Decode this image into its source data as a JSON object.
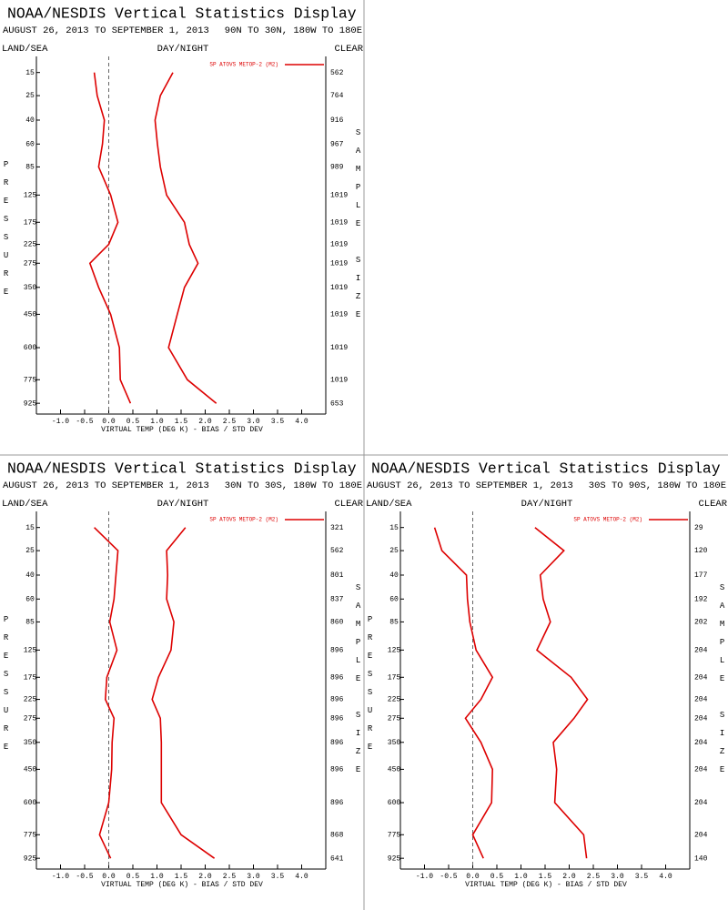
{
  "chart_data": [
    {
      "type": "line",
      "title": "NOAA/NESDIS Vertical Statistics Display",
      "subtitle": "AUGUST 26, 2013 TO SEPTEMBER 1, 2013",
      "region": "90N TO 30N, 180W TO 180E",
      "left_label": "LAND/SEA",
      "center_label": "DAY/NIGHT",
      "right_label": "CLEAR",
      "y_label": "PRESSURE",
      "y2_label": "SAMPLE SIZE",
      "x_label": "VIRTUAL TEMP (DEG K) - BIAS / STD DEV",
      "xlim": [
        -1.5,
        4.5
      ],
      "xticks": [
        {
          "value": -1.0,
          "label": "-1.0"
        },
        -0.5,
        {
          "value": 0.0,
          "label": "0.0"
        },
        0.5,
        {
          "value": 1.0,
          "label": "1.0"
        },
        1.5,
        {
          "value": 2.0,
          "label": "2.0"
        },
        2.5,
        {
          "value": 3.0,
          "label": "3.0"
        },
        3.5,
        {
          "value": 4.0,
          "label": "4.0"
        }
      ],
      "ylim": [
        10,
        1000
      ],
      "yticks": [
        15,
        25,
        40,
        60,
        85,
        125,
        175,
        225,
        275,
        350,
        450,
        600,
        775,
        925
      ],
      "y": [
        15,
        25,
        40,
        60,
        85,
        125,
        175,
        225,
        275,
        350,
        450,
        600,
        775,
        925
      ],
      "legend": "upper right",
      "series": [
        {
          "name": "SP ATOVS METOP-2 (M2)",
          "color": "#dd0000",
          "values": [
            -0.3,
            -0.24,
            -0.09,
            -0.13,
            -0.21,
            0.04,
            0.19,
            0.0,
            -0.39,
            -0.21,
            0.04,
            0.22,
            0.24,
            0.45
          ],
          "std_dev": [
            1.33,
            1.07,
            0.96,
            1.01,
            1.07,
            1.2,
            1.57,
            1.67,
            1.85,
            1.57,
            1.42,
            1.24,
            1.63,
            2.23
          ]
        }
      ],
      "sample_size": [
        562,
        764,
        916,
        967,
        989,
        1019,
        1019,
        1019,
        1019,
        1019,
        1019,
        1019,
        1019,
        653
      ]
    },
    {
      "type": "line",
      "title": "NOAA/NESDIS Vertical Statistics Display",
      "subtitle": "AUGUST 26, 2013 TO SEPTEMBER 1, 2013",
      "region": "30N TO 30S, 180W TO 180E",
      "left_label": "LAND/SEA",
      "center_label": "DAY/NIGHT",
      "right_label": "CLEAR",
      "y_label": "PRESSURE",
      "y2_label": "SAMPLE SIZE",
      "x_label": "VIRTUAL TEMP (DEG K) - BIAS / STD DEV",
      "xlim": [
        -1.5,
        4.5
      ],
      "xticks": [
        {
          "value": -1.0,
          "label": "-1.0"
        },
        -0.5,
        {
          "value": 0.0,
          "label": "0.0"
        },
        0.5,
        {
          "value": 1.0,
          "label": "1.0"
        },
        1.5,
        {
          "value": 2.0,
          "label": "2.0"
        },
        2.5,
        {
          "value": 3.0,
          "label": "3.0"
        },
        3.5,
        {
          "value": 4.0,
          "label": "4.0"
        }
      ],
      "ylim": [
        10,
        1000
      ],
      "yticks": [
        15,
        25,
        40,
        60,
        85,
        125,
        175,
        225,
        275,
        350,
        450,
        600,
        775,
        925
      ],
      "y": [
        15,
        25,
        40,
        60,
        85,
        125,
        175,
        225,
        275,
        350,
        450,
        600,
        775,
        925
      ],
      "legend": "upper right",
      "series": [
        {
          "name": "SP ATOVS METOP-2 (M2)",
          "color": "#dd0000",
          "values": [
            -0.3,
            0.19,
            0.15,
            0.11,
            0.02,
            0.17,
            -0.04,
            -0.07,
            0.11,
            0.07,
            0.06,
            0.0,
            -0.19,
            0.04
          ],
          "std_dev": [
            1.59,
            1.2,
            1.22,
            1.2,
            1.35,
            1.29,
            1.03,
            0.9,
            1.07,
            1.09,
            1.09,
            1.09,
            1.5,
            2.19
          ]
        }
      ],
      "sample_size": [
        321,
        562,
        801,
        837,
        860,
        896,
        896,
        896,
        896,
        896,
        896,
        896,
        868,
        641
      ]
    },
    {
      "type": "line",
      "title": "NOAA/NESDIS Vertical Statistics Display",
      "subtitle": "AUGUST 26, 2013 TO SEPTEMBER 1, 2013",
      "region": "30S TO 90S, 180W TO 180E",
      "left_label": "LAND/SEA",
      "center_label": "DAY/NIGHT",
      "right_label": "CLEAR",
      "y_label": "PRESSURE",
      "y2_label": "SAMPLE SIZE",
      "x_label": "VIRTUAL TEMP (DEG K) - BIAS / STD DEV",
      "xlim": [
        -1.5,
        4.5
      ],
      "xticks": [
        {
          "value": -1.0,
          "label": "-1.0"
        },
        -0.5,
        {
          "value": 0.0,
          "label": "0.0"
        },
        0.5,
        {
          "value": 1.0,
          "label": "1.0"
        },
        1.5,
        {
          "value": 2.0,
          "label": "2.0"
        },
        2.5,
        {
          "value": 3.0,
          "label": "3.0"
        },
        3.5,
        {
          "value": 4.0,
          "label": "4.0"
        }
      ],
      "ylim": [
        10,
        1000
      ],
      "yticks": [
        15,
        25,
        40,
        60,
        85,
        125,
        175,
        225,
        275,
        350,
        450,
        600,
        775,
        925
      ],
      "y": [
        15,
        25,
        40,
        60,
        85,
        125,
        175,
        225,
        275,
        350,
        450,
        600,
        775,
        925
      ],
      "legend": "upper right",
      "series": [
        {
          "name": "SP ATOVS METOP-2 (M2)",
          "color": "#dd0000",
          "values": [
            -0.79,
            -0.64,
            -0.13,
            -0.11,
            -0.06,
            0.07,
            0.41,
            0.17,
            -0.15,
            0.17,
            0.41,
            0.39,
            0.0,
            0.22
          ],
          "std_dev": [
            1.29,
            1.89,
            1.4,
            1.46,
            1.61,
            1.33,
            2.04,
            2.38,
            2.1,
            1.67,
            1.74,
            1.7,
            2.3,
            2.36
          ]
        }
      ],
      "sample_size": [
        29,
        120,
        177,
        192,
        202,
        204,
        204,
        204,
        204,
        204,
        204,
        204,
        204,
        140
      ]
    }
  ]
}
